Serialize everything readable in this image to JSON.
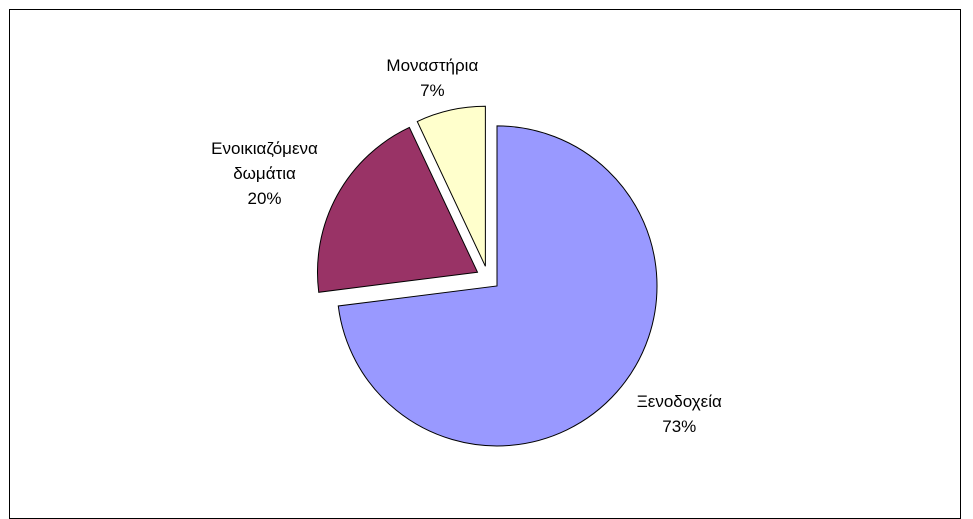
{
  "chart_data": {
    "type": "pie",
    "categories": [
      "Ξενοδοχεία",
      "Ενοικιαζόμενα δωμάτια",
      "Μοναστήρια"
    ],
    "values": [
      73,
      20,
      7
    ],
    "value_labels": [
      "73%",
      "20%",
      "7%"
    ],
    "colors": [
      "#9999ff",
      "#993366",
      "#ffffcc"
    ]
  }
}
